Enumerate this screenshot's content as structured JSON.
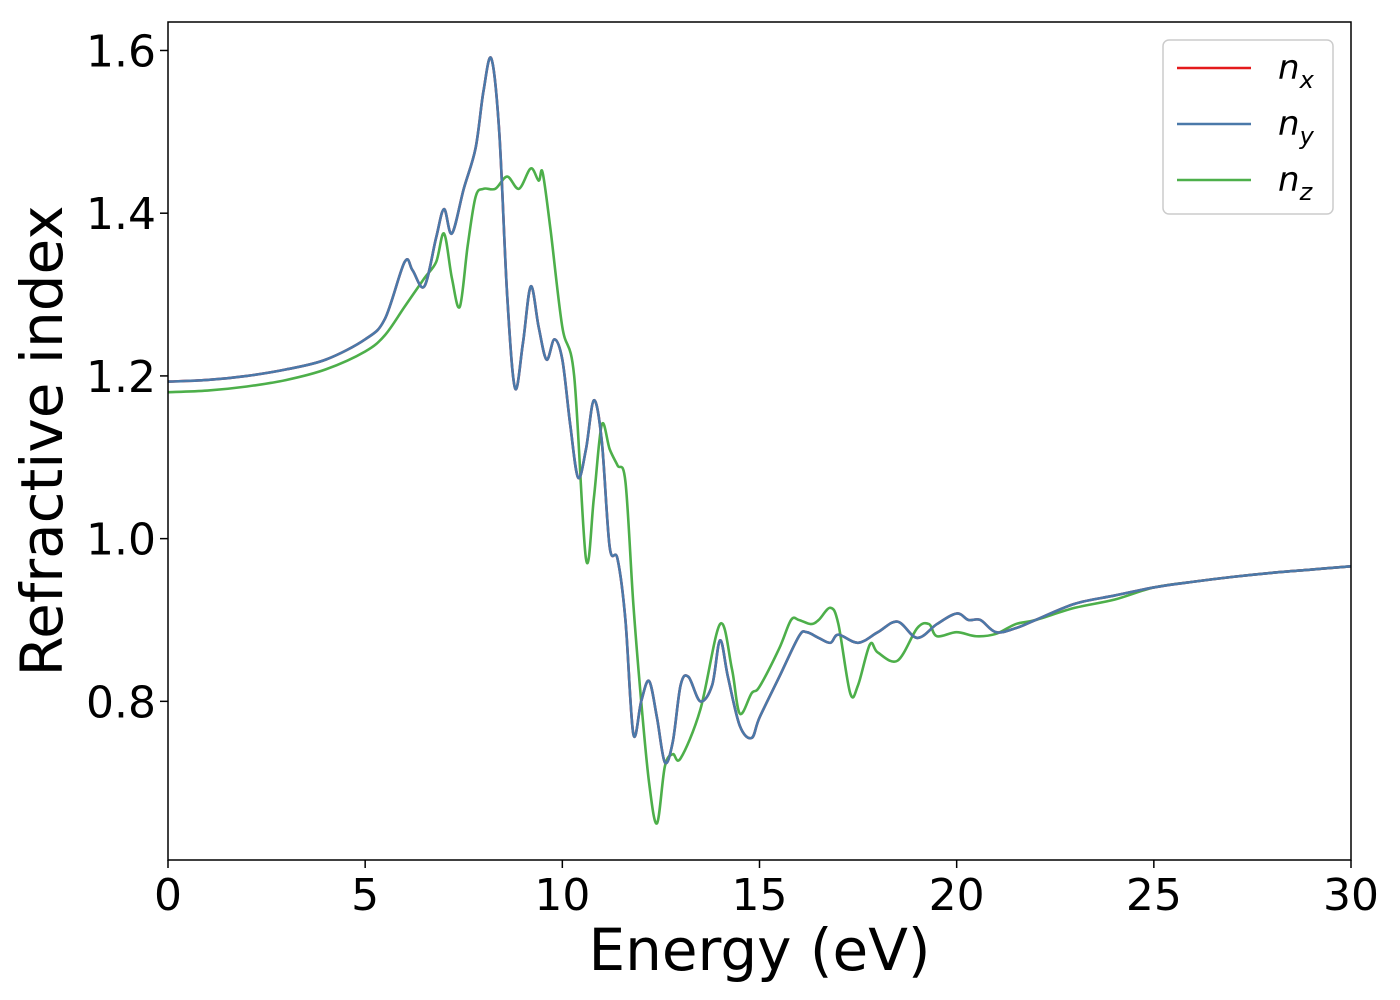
{
  "chart_data": {
    "type": "line",
    "title": "",
    "xlabel": "Energy (eV)",
    "ylabel": "Refractive index",
    "xlim": [
      0,
      30
    ],
    "ylim": [
      0.605,
      1.635
    ],
    "xticks": [
      0,
      5,
      10,
      15,
      20,
      25,
      30
    ],
    "xtick_labels": [
      "0",
      "5",
      "10",
      "15",
      "20",
      "25",
      "30"
    ],
    "yticks": [
      0.8,
      1.0,
      1.2,
      1.4,
      1.6
    ],
    "ytick_labels": [
      "0.8",
      "1.0",
      "1.2",
      "1.4",
      "1.6"
    ],
    "grid": false,
    "legend_position": "top-right",
    "series": [
      {
        "name": "n_x",
        "legend_base": "n",
        "legend_sub": "x",
        "color": "#e41a1c",
        "x": [
          0,
          1,
          2,
          3,
          4,
          5,
          5.5,
          6,
          6.2,
          6.5,
          6.8,
          7,
          7.2,
          7.5,
          7.8,
          8,
          8.2,
          8.4,
          8.6,
          8.8,
          9,
          9.2,
          9.4,
          9.6,
          9.8,
          10,
          10.2,
          10.4,
          10.6,
          10.8,
          11,
          11.2,
          11.4,
          11.6,
          11.8,
          12,
          12.2,
          12.4,
          12.6,
          12.8,
          13,
          13.2,
          13.5,
          13.8,
          14,
          14.2,
          14.5,
          14.8,
          15,
          15.5,
          16,
          16.2,
          16.5,
          16.8,
          17,
          17.5,
          18,
          18.5,
          19,
          19.5,
          20,
          20.3,
          20.6,
          21,
          21.5,
          22,
          23,
          24,
          25,
          26,
          27,
          28,
          29,
          30
        ],
        "values": [
          1.193,
          1.195,
          1.2,
          1.208,
          1.22,
          1.245,
          1.27,
          1.34,
          1.33,
          1.31,
          1.37,
          1.405,
          1.375,
          1.43,
          1.48,
          1.55,
          1.59,
          1.5,
          1.3,
          1.185,
          1.24,
          1.31,
          1.26,
          1.22,
          1.245,
          1.22,
          1.14,
          1.075,
          1.11,
          1.17,
          1.12,
          0.99,
          0.975,
          0.9,
          0.76,
          0.8,
          0.825,
          0.78,
          0.725,
          0.75,
          0.82,
          0.83,
          0.8,
          0.82,
          0.875,
          0.83,
          0.77,
          0.755,
          0.78,
          0.83,
          0.88,
          0.885,
          0.878,
          0.872,
          0.882,
          0.872,
          0.885,
          0.898,
          0.878,
          0.895,
          0.908,
          0.9,
          0.9,
          0.885,
          0.89,
          0.9,
          0.92,
          0.93,
          0.94,
          0.947,
          0.953,
          0.958,
          0.962,
          0.966
        ]
      },
      {
        "name": "n_y",
        "legend_base": "n",
        "legend_sub": "y",
        "color": "#4a79a9",
        "x": [
          0,
          1,
          2,
          3,
          4,
          5,
          5.5,
          6,
          6.2,
          6.5,
          6.8,
          7,
          7.2,
          7.5,
          7.8,
          8,
          8.2,
          8.4,
          8.6,
          8.8,
          9,
          9.2,
          9.4,
          9.6,
          9.8,
          10,
          10.2,
          10.4,
          10.6,
          10.8,
          11,
          11.2,
          11.4,
          11.6,
          11.8,
          12,
          12.2,
          12.4,
          12.6,
          12.8,
          13,
          13.2,
          13.5,
          13.8,
          14,
          14.2,
          14.5,
          14.8,
          15,
          15.5,
          16,
          16.2,
          16.5,
          16.8,
          17,
          17.5,
          18,
          18.5,
          19,
          19.5,
          20,
          20.3,
          20.6,
          21,
          21.5,
          22,
          23,
          24,
          25,
          26,
          27,
          28,
          29,
          30
        ],
        "values": [
          1.193,
          1.195,
          1.2,
          1.208,
          1.22,
          1.245,
          1.27,
          1.34,
          1.33,
          1.31,
          1.37,
          1.405,
          1.375,
          1.43,
          1.48,
          1.55,
          1.59,
          1.5,
          1.3,
          1.185,
          1.24,
          1.31,
          1.26,
          1.22,
          1.245,
          1.22,
          1.14,
          1.075,
          1.11,
          1.17,
          1.12,
          0.99,
          0.975,
          0.9,
          0.76,
          0.8,
          0.825,
          0.78,
          0.725,
          0.75,
          0.82,
          0.83,
          0.8,
          0.82,
          0.875,
          0.83,
          0.77,
          0.755,
          0.78,
          0.83,
          0.88,
          0.885,
          0.878,
          0.872,
          0.882,
          0.872,
          0.885,
          0.898,
          0.878,
          0.895,
          0.908,
          0.9,
          0.9,
          0.885,
          0.89,
          0.9,
          0.92,
          0.93,
          0.94,
          0.947,
          0.953,
          0.958,
          0.962,
          0.966
        ]
      },
      {
        "name": "n_z",
        "legend_base": "n",
        "legend_sub": "z",
        "color": "#4daf4a",
        "x": [
          0,
          1,
          2,
          3,
          4,
          5,
          5.5,
          6,
          6.5,
          6.8,
          7,
          7.2,
          7.4,
          7.6,
          7.8,
          8,
          8.3,
          8.6,
          8.9,
          9.2,
          9.4,
          9.5,
          9.7,
          10,
          10.3,
          10.6,
          10.8,
          11,
          11.2,
          11.4,
          11.6,
          11.8,
          12,
          12.2,
          12.4,
          12.6,
          12.8,
          13,
          13.5,
          14,
          14.3,
          14.5,
          14.8,
          15,
          15.5,
          15.8,
          16,
          16.3,
          16.5,
          16.8,
          17,
          17.3,
          17.5,
          17.8,
          18,
          18.5,
          19,
          19.3,
          19.5,
          20,
          20.5,
          21,
          21.5,
          22,
          23,
          24,
          25,
          26,
          27,
          28,
          29,
          30
        ],
        "values": [
          1.18,
          1.182,
          1.187,
          1.195,
          1.208,
          1.23,
          1.25,
          1.285,
          1.32,
          1.34,
          1.375,
          1.32,
          1.285,
          1.36,
          1.42,
          1.43,
          1.43,
          1.445,
          1.43,
          1.455,
          1.44,
          1.45,
          1.38,
          1.26,
          1.2,
          0.975,
          1.05,
          1.14,
          1.11,
          1.09,
          1.07,
          0.92,
          0.8,
          0.7,
          0.65,
          0.72,
          0.735,
          0.73,
          0.79,
          0.895,
          0.84,
          0.785,
          0.81,
          0.818,
          0.865,
          0.9,
          0.9,
          0.895,
          0.9,
          0.915,
          0.895,
          0.81,
          0.82,
          0.87,
          0.86,
          0.85,
          0.89,
          0.895,
          0.88,
          0.885,
          0.88,
          0.883,
          0.895,
          0.9,
          0.915,
          0.925,
          0.94,
          0.947,
          0.953,
          0.958,
          0.962,
          0.966
        ]
      }
    ]
  }
}
